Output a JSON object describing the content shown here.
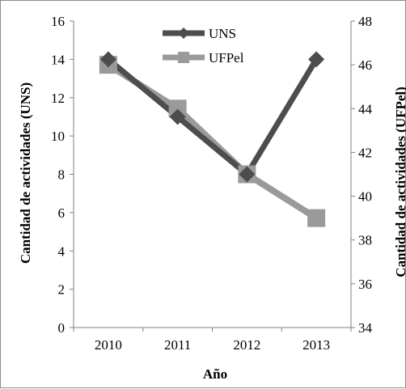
{
  "chart_data": {
    "type": "line",
    "title": "",
    "x": [
      "2010",
      "2011",
      "2012",
      "2013"
    ],
    "xlabel": "Año",
    "series": [
      {
        "name": "UNS",
        "axis": "left",
        "values": [
          14,
          11,
          8,
          14
        ],
        "color": "#4d4d4d",
        "marker": "diamond"
      },
      {
        "name": "UFPel",
        "axis": "right",
        "values": [
          46,
          44,
          41,
          39
        ],
        "color": "#9a9a9a",
        "marker": "square"
      }
    ],
    "y_left": {
      "label": "Cantidad de actividades (UNS)",
      "lim": [
        0,
        16
      ],
      "ticks": [
        "0",
        "2",
        "4",
        "6",
        "8",
        "10",
        "12",
        "14",
        "16"
      ]
    },
    "y_right": {
      "label": "Cantidad de actividades (UFPel)",
      "lim": [
        34,
        48
      ],
      "ticks": [
        "34",
        "36",
        "38",
        "40",
        "42",
        "44",
        "46",
        "48"
      ]
    },
    "grid": false,
    "legend": "top-center"
  }
}
